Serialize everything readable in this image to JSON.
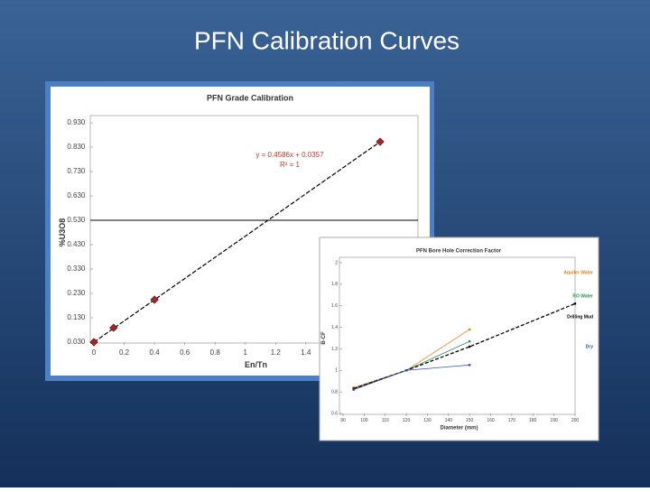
{
  "title": "PFN Calibration Curves",
  "chart_data": [
    {
      "type": "scatter",
      "title": "PFN Grade Calibration",
      "x_label": "En/Tn",
      "y_label": "%U3O8",
      "x": [
        0,
        0.13,
        0.4,
        1.89
      ],
      "values": [
        0.03,
        0.089,
        0.204,
        0.852
      ],
      "color": "#a0282a",
      "xlim": [
        0,
        2.14
      ],
      "ylim": [
        0.03,
        0.93
      ],
      "xticks": [
        0,
        0.2,
        0.4,
        0.6,
        0.8,
        1,
        1.2,
        1.4
      ],
      "yticks": [
        {
          "value": 0.03,
          "label": "0.030"
        },
        {
          "value": 0.13,
          "label": "0.130"
        },
        {
          "value": 0.23,
          "label": "0.230"
        },
        {
          "value": 0.33,
          "label": "0.330"
        },
        {
          "value": 0.43,
          "label": "0.430"
        },
        {
          "value": 0.53,
          "label": "0.530"
        },
        {
          "value": 0.63,
          "label": "0.630"
        },
        {
          "value": 0.73,
          "label": "0.730"
        },
        {
          "value": 0.83,
          "label": "0.830"
        },
        {
          "value": 0.93,
          "label": "0.930"
        }
      ],
      "reference_line": 0.53,
      "annotations": [
        "y = 0.4586x + 0.0357",
        "R² = 1"
      ]
    },
    {
      "type": "line",
      "title": "PFN Bore Hole Correction Factor",
      "x_label": "Diameter (mm)",
      "y_label": "B-CF",
      "xlim": [
        90,
        200
      ],
      "ylim": [
        0.6,
        2
      ],
      "xticks": [
        90,
        100,
        110,
        120,
        130,
        140,
        150,
        160,
        170,
        180,
        190,
        200
      ],
      "yticks": [
        0.6,
        0.8,
        1,
        1.2,
        1.4,
        1.6,
        1.8,
        2
      ],
      "series": [
        {
          "name": "Aquifer Water",
          "color": "#f07c1c",
          "x": [
            95,
            120,
            150
          ],
          "values": [
            0.84,
            1.0,
            1.38
          ]
        },
        {
          "name": "RO Water",
          "color": "#2e8b57",
          "x": [
            95,
            120,
            150
          ],
          "values": [
            0.83,
            1.0,
            1.27
          ]
        },
        {
          "name": "Drilling Mud",
          "color": "#000000",
          "dashed": true,
          "x": [
            95,
            120,
            150,
            200
          ],
          "values": [
            0.83,
            1.0,
            1.22,
            1.62
          ]
        },
        {
          "name": "Dry",
          "color": "#3a4fc0",
          "x": [
            95,
            120,
            150
          ],
          "values": [
            0.82,
            1.0,
            1.05
          ]
        }
      ]
    }
  ]
}
